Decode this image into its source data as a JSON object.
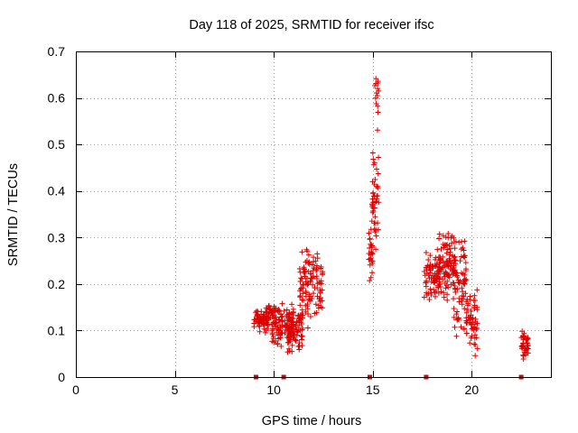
{
  "chart_data": {
    "type": "scatter",
    "title": "Day 118 of 2025, SRMTID for receiver ifsc",
    "xlabel": "GPS time / hours",
    "ylabel": "SRMTID / TECUs",
    "xlim": [
      0,
      24
    ],
    "ylim": [
      0,
      0.7
    ],
    "x_ticks": [
      0,
      5,
      10,
      15,
      20
    ],
    "y_ticks": [
      0,
      0.1,
      0.2,
      0.3,
      0.4,
      0.5,
      0.6,
      0.7
    ],
    "x_tick_labels": [
      "0",
      "5",
      "10",
      "15",
      "20"
    ],
    "y_tick_labels": [
      "0",
      "0.1",
      "0.2",
      "0.3",
      "0.4",
      "0.5",
      "0.6",
      "0.7"
    ],
    "grid": true,
    "marker": "+",
    "series_color": "#dd0000",
    "baseline_markers_x": [
      9.1,
      10.5,
      14.85,
      17.7,
      22.5
    ],
    "clusters": [
      {
        "x_start": 9.0,
        "x_end": 9.75,
        "y_min": 0.09,
        "y_max": 0.155,
        "n": 70
      },
      {
        "x_start": 9.6,
        "x_end": 10.1,
        "y_min": 0.12,
        "y_max": 0.16,
        "n": 25
      },
      {
        "x_start": 9.9,
        "x_end": 11.0,
        "y_min": 0.06,
        "y_max": 0.16,
        "n": 110
      },
      {
        "x_start": 10.7,
        "x_end": 11.5,
        "y_min": 0.05,
        "y_max": 0.15,
        "n": 70
      },
      {
        "x_start": 11.3,
        "x_end": 11.8,
        "y_min": 0.1,
        "y_max": 0.29,
        "n": 55
      },
      {
        "x_start": 11.8,
        "x_end": 12.5,
        "y_min": 0.12,
        "y_max": 0.28,
        "n": 60
      },
      {
        "x_start": 14.8,
        "x_end": 15.0,
        "y_min": 0.2,
        "y_max": 0.34,
        "n": 25
      },
      {
        "x_start": 14.95,
        "x_end": 15.3,
        "y_min": 0.25,
        "y_max": 0.51,
        "n": 45
      },
      {
        "x_start": 15.1,
        "x_end": 15.3,
        "y_min": 0.52,
        "y_max": 0.665,
        "n": 14
      },
      {
        "x_start": 17.6,
        "x_end": 18.4,
        "y_min": 0.16,
        "y_max": 0.28,
        "n": 70
      },
      {
        "x_start": 18.3,
        "x_end": 19.2,
        "y_min": 0.16,
        "y_max": 0.32,
        "n": 110
      },
      {
        "x_start": 19.1,
        "x_end": 19.8,
        "y_min": 0.08,
        "y_max": 0.32,
        "n": 70
      },
      {
        "x_start": 19.7,
        "x_end": 20.3,
        "y_min": 0.04,
        "y_max": 0.2,
        "n": 55
      },
      {
        "x_start": 22.5,
        "x_end": 22.85,
        "y_min": 0.03,
        "y_max": 0.1,
        "n": 40
      }
    ]
  }
}
